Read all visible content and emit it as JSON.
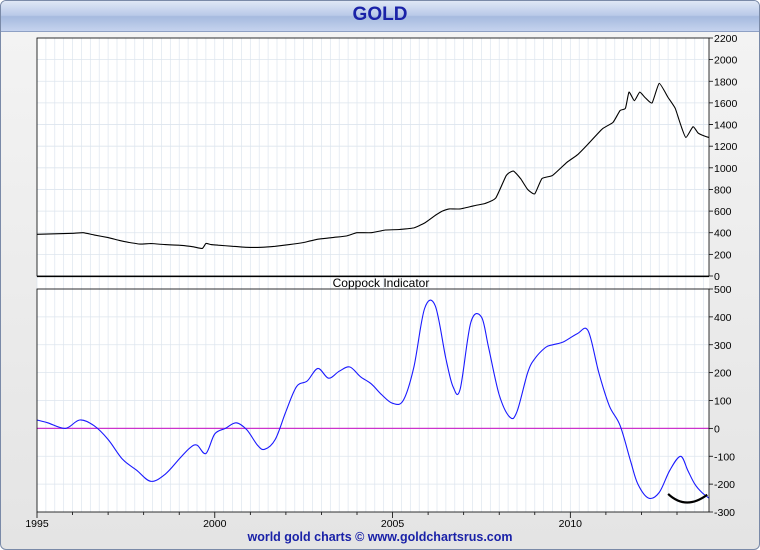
{
  "title": "GOLD",
  "footer": "world gold charts © www.goldchartsrus.com",
  "colors": {
    "price_line": "#000000",
    "indicator_line": "#1a1aff",
    "zero_line": "#cc33cc",
    "grid": "#dde5ee",
    "title": "#1a22a8"
  },
  "chart_data": [
    {
      "type": "line",
      "title": "",
      "ylim": [
        0,
        2200
      ],
      "yticks": [
        0,
        200,
        400,
        600,
        800,
        1000,
        1200,
        1400,
        1600,
        1800,
        2000,
        2200
      ],
      "xlim": [
        1995,
        2013.9
      ],
      "xticks": [
        1995,
        2000,
        2005,
        2010
      ],
      "grid": true,
      "series": [
        {
          "x": [
            1995.0,
            1995.5,
            1996.0,
            1996.3,
            1996.6,
            1997.0,
            1997.3,
            1997.6,
            1997.9,
            1998.2,
            1998.6,
            1999.0,
            1999.4,
            1999.65,
            1999.75,
            1999.9,
            2000.1,
            2000.5,
            2000.9,
            2001.3,
            2001.7,
            2002.1,
            2002.5,
            2002.9,
            2003.3,
            2003.7,
            2004.0,
            2004.4,
            2004.8,
            2005.2,
            2005.6,
            2005.9,
            2006.2,
            2006.4,
            2006.6,
            2006.9,
            2007.3,
            2007.6,
            2007.9,
            2008.2,
            2008.4,
            2008.6,
            2008.8,
            2009.0,
            2009.2,
            2009.5,
            2009.9,
            2010.2,
            2010.5,
            2010.9,
            2011.2,
            2011.4,
            2011.55,
            2011.65,
            2011.8,
            2011.95,
            2012.1,
            2012.3,
            2012.5,
            2012.75,
            2012.95,
            2013.1,
            2013.25,
            2013.45,
            2013.6,
            2013.8,
            2013.9
          ],
          "values": [
            385,
            390,
            395,
            400,
            380,
            355,
            330,
            310,
            295,
            300,
            290,
            285,
            270,
            255,
            300,
            290,
            285,
            275,
            265,
            265,
            275,
            290,
            310,
            340,
            355,
            370,
            400,
            400,
            425,
            430,
            445,
            490,
            560,
            600,
            620,
            620,
            650,
            670,
            720,
            930,
            970,
            900,
            800,
            760,
            900,
            930,
            1050,
            1120,
            1220,
            1360,
            1420,
            1530,
            1550,
            1700,
            1620,
            1700,
            1650,
            1600,
            1780,
            1650,
            1550,
            1400,
            1280,
            1380,
            1320,
            1290,
            1280
          ]
        }
      ]
    },
    {
      "type": "line",
      "title": "Coppock Indicator",
      "ylim": [
        -300,
        500
      ],
      "yticks": [
        -300,
        -200,
        -100,
        0,
        100,
        200,
        300,
        400,
        500
      ],
      "xlim": [
        1995,
        2013.9
      ],
      "xticks": [
        1995,
        2000,
        2005,
        2010
      ],
      "reference_line": 0,
      "grid": true,
      "series": [
        {
          "x": [
            1995.0,
            1995.3,
            1995.8,
            1996.2,
            1996.6,
            1997.0,
            1997.4,
            1997.8,
            1998.2,
            1998.6,
            1999.0,
            1999.3,
            1999.5,
            1999.75,
            2000.0,
            2000.3,
            2000.6,
            2000.9,
            2001.2,
            2001.4,
            2001.7,
            2002.0,
            2002.3,
            2002.6,
            2002.9,
            2003.2,
            2003.5,
            2003.8,
            2004.1,
            2004.4,
            2004.7,
            2005.0,
            2005.3,
            2005.6,
            2005.9,
            2006.2,
            2006.5,
            2006.7,
            2006.9,
            2007.2,
            2007.5,
            2007.7,
            2008.0,
            2008.3,
            2008.5,
            2008.8,
            2009.0,
            2009.3,
            2009.5,
            2009.8,
            2010.2,
            2010.5,
            2010.8,
            2011.1,
            2011.4,
            2011.7,
            2011.9,
            2012.2,
            2012.5,
            2012.8,
            2013.1,
            2013.3,
            2013.5,
            2013.7,
            2013.9
          ],
          "values": [
            30,
            20,
            0,
            30,
            10,
            -40,
            -110,
            -150,
            -190,
            -165,
            -110,
            -70,
            -60,
            -90,
            -20,
            0,
            20,
            -5,
            -60,
            -75,
            -40,
            60,
            150,
            170,
            215,
            180,
            205,
            220,
            185,
            160,
            120,
            90,
            100,
            220,
            430,
            440,
            250,
            150,
            140,
            380,
            400,
            290,
            120,
            40,
            60,
            200,
            250,
            290,
            300,
            310,
            340,
            350,
            200,
            80,
            10,
            -120,
            -200,
            -250,
            -230,
            -150,
            -100,
            -150,
            -200,
            -230,
            -250
          ]
        }
      ]
    }
  ]
}
